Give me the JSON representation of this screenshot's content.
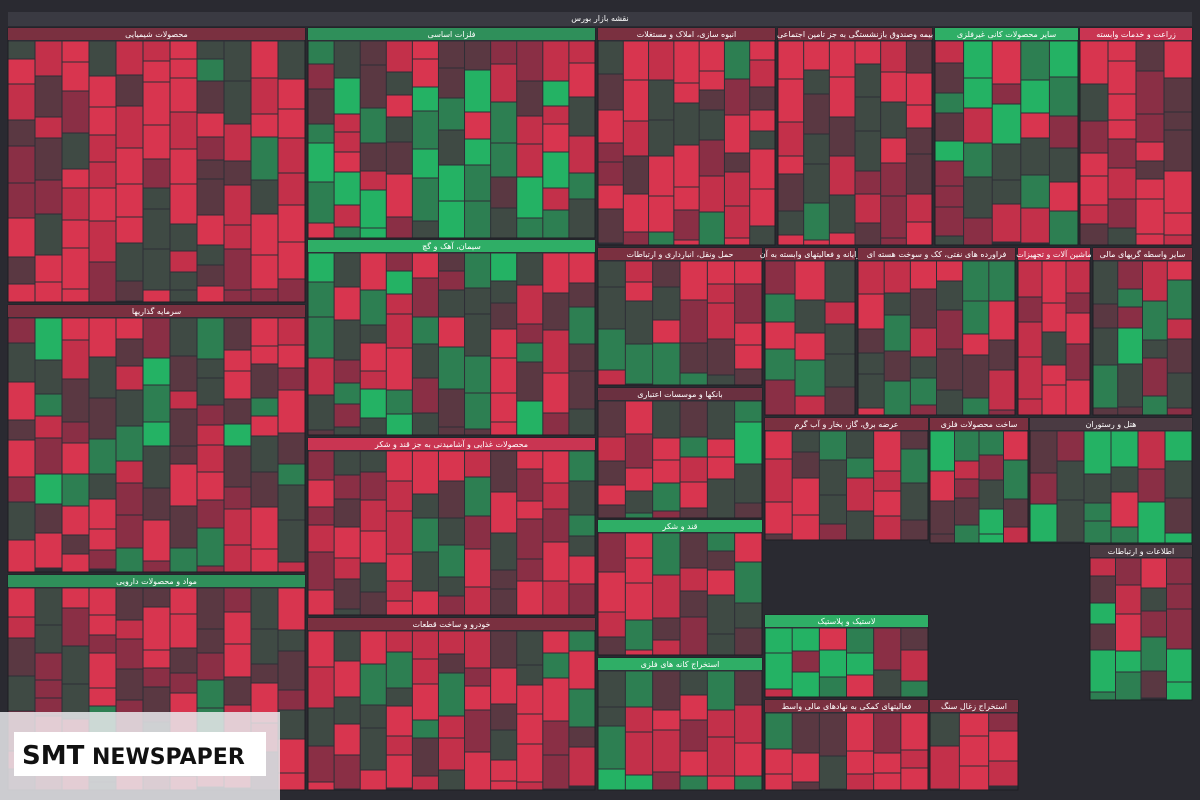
{
  "header": {
    "title": "نقشه بازار بورس"
  },
  "sectors": [
    {
      "name": "محصولات شیمیایی"
    },
    {
      "name": "فلزات اساسی"
    },
    {
      "name": "انبوه سازی، املاک و مستغلات"
    },
    {
      "name": "بیمه وصندوق بازنشستگی به جز تامین اجتماعی"
    },
    {
      "name": "سایر محصولات کانی غیرفلزی"
    },
    {
      "name": "زراعت و خدمات وابسته"
    },
    {
      "name": "سرمایه گذاریها"
    },
    {
      "name": "مواد و محصولات دارویی"
    },
    {
      "name": "سیمان، آهک و گچ"
    },
    {
      "name": "محصولات غذایی و آشامیدنی به جز قند و شکر"
    },
    {
      "name": "خودرو و ساخت قطعات"
    },
    {
      "name": "حمل ونقل، انبارداری و ارتباطات"
    },
    {
      "name": "بانکها و موسسات اعتباری"
    },
    {
      "name": "قند و شکر"
    },
    {
      "name": "استخراج کانه های فلزی"
    },
    {
      "name": "رایانه و فعالیتهای وابسته به آن"
    },
    {
      "name": "فراورده های نفتی، کک و سوخت هسته ای"
    },
    {
      "name": "ماشین آلات و تجهیزات"
    },
    {
      "name": "سایر واسطه گریهای مالی"
    },
    {
      "name": "عرضه برق، گاز، بخار و آب گرم"
    },
    {
      "name": "ساخت محصولات فلزی"
    },
    {
      "name": "هتل و رستوران"
    },
    {
      "name": "لاستیک و پلاستیک"
    },
    {
      "name": "اطلاعات و ارتباطات"
    },
    {
      "name": "فعالیتهای کمکی به نهادهای مالی واسط"
    },
    {
      "name": "استخراج زغال سنگ"
    }
  ],
  "watermark": {
    "brand": "SMT",
    "word": "NEWSPAPER"
  }
}
